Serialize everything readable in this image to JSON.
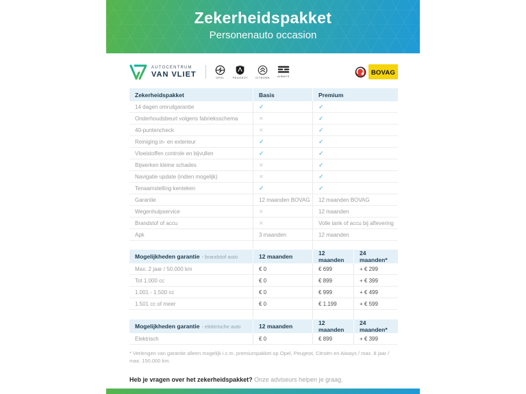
{
  "header": {
    "title": "Zekerheidspakket",
    "subtitle": "Personenauto occasion"
  },
  "branding": {
    "dealer_name_top": "AUTOCENTRUM",
    "dealer_name_bottom": "VAN VLIET",
    "brands": [
      "OPEL",
      "PEUGEOT",
      "CITROËN",
      "AIWAYS"
    ],
    "bovag_label": "BOVAG"
  },
  "package_table": {
    "col_headers": [
      "Zekerheidspakket",
      "Basis",
      "Premium"
    ],
    "rows": [
      {
        "label": "14 dagen omruilgarantie",
        "basis": "check",
        "premium": "check"
      },
      {
        "label": "Onderhoudsbeurt volgens fabrieksschema",
        "basis": "cross",
        "premium": "check"
      },
      {
        "label": "40-puntencheck",
        "basis": "cross",
        "premium": "check"
      },
      {
        "label": "Reiniging in- en exterieur",
        "basis": "check",
        "premium": "check"
      },
      {
        "label": "Vloeistoffen controle en bijvullen",
        "basis": "check",
        "premium": "check"
      },
      {
        "label": "Bijwerken kleine schades",
        "basis": "cross",
        "premium": "check"
      },
      {
        "label": "Navigatie update (indien mogelijk)",
        "basis": "cross",
        "premium": "check"
      },
      {
        "label": "Tenaamstelling kenteken",
        "basis": "check",
        "premium": "check"
      },
      {
        "label": "Garantie",
        "basis": "12 maanden BOVAG",
        "premium": "12 maanden BOVAG"
      },
      {
        "label": "Wegenhulpservice",
        "basis": "cross",
        "premium": "12 maanden"
      },
      {
        "label": "Brandstof of accu",
        "basis": "cross",
        "premium": "Volle tank of accu bij aflevering"
      },
      {
        "label": "Apk",
        "basis": "3 maanden",
        "premium": "12 maanden"
      }
    ]
  },
  "warranty_fuel_table": {
    "title": "Mogelijkheden garantie",
    "title_suffix": "- brandstof auto",
    "col_headers": [
      "12 maanden",
      "12 maanden",
      "24 maanden*"
    ],
    "rows": [
      [
        "Max. 2 jaar / 50.000 km",
        "€ 0",
        "€ 699",
        "+ € 299"
      ],
      [
        "Tot 1.000 cc",
        "€ 0",
        "€ 899",
        "+ € 399"
      ],
      [
        "1.001 - 1.500 cc",
        "€ 0",
        "€ 999",
        "+ € 499"
      ],
      [
        "1.501 cc of meer",
        "€ 0",
        "€ 1.199",
        "+ € 599"
      ]
    ]
  },
  "warranty_electric_table": {
    "title": "Mogelijkheden garantie",
    "title_suffix": "- elektrische auto",
    "col_headers": [
      "12 maanden",
      "12 maanden",
      "24 maanden*"
    ],
    "rows": [
      [
        "Elektrisch",
        "€ 0",
        "€ 899",
        "+ € 399"
      ]
    ]
  },
  "footnote": "* Verlengen van garantie alleen mogelijk i.c.m. premiumpakket op Opel, Peugeot, Citroën en Aiways / max. 8 jaar / max. 150.000 km.",
  "question": {
    "bold": "Heb je vragen over het zekerheidspakket?",
    "regular": "Onze adviseurs helpen je graag."
  },
  "colors": {
    "gradient_green": "#55b54b",
    "gradient_blue": "#1f9ad6",
    "table_header_bg": "#e3f0f8",
    "header_text": "#1e3b4e",
    "check": "#3fa7d9",
    "cross": "#c9c9c9",
    "bovag_yellow": "#f6d40a",
    "bovag_red": "#e03a2f"
  }
}
